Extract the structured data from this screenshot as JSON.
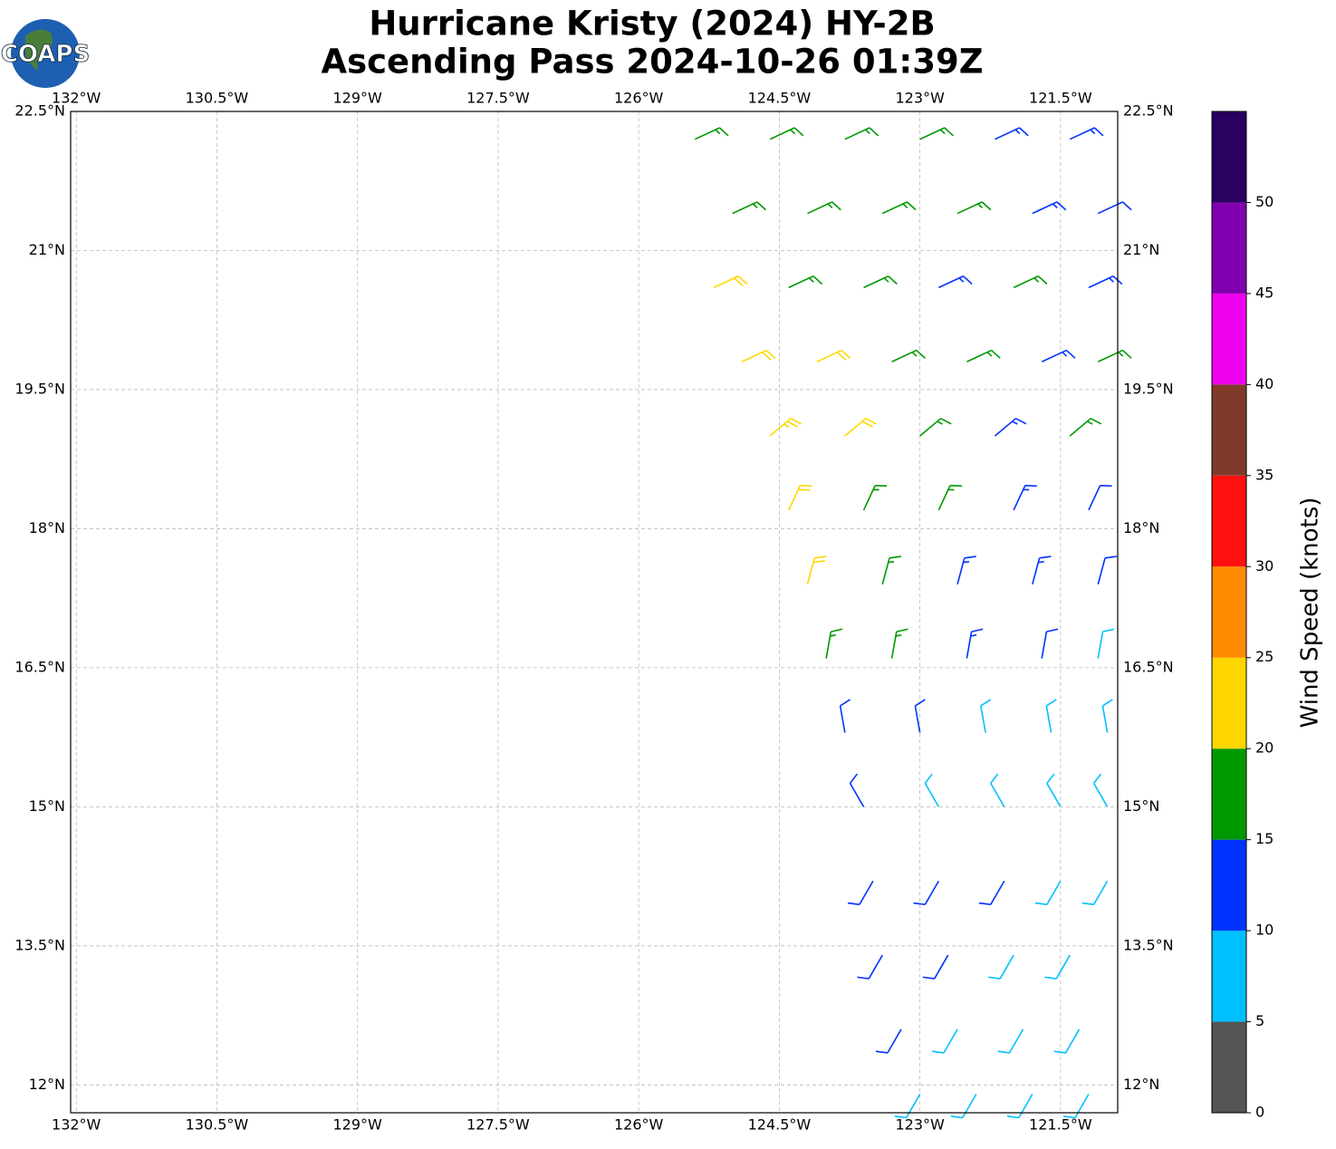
{
  "chart_data": {
    "type": "barbs",
    "title": "Hurricane Kristy (2024) HY-2B",
    "subtitle": "Ascending Pass 2024-10-26 01:39Z",
    "logo": "COAPS",
    "xlim": [
      -132.06,
      -120.89
    ],
    "ylim": [
      11.7,
      22.5
    ],
    "xticks": [
      {
        "value": -132,
        "label": "132°W"
      },
      {
        "value": -130.5,
        "label": "130.5°W"
      },
      {
        "value": -129,
        "label": "129°W"
      },
      {
        "value": -127.5,
        "label": "127.5°W"
      },
      {
        "value": -126,
        "label": "126°W"
      },
      {
        "value": -124.5,
        "label": "124.5°W"
      },
      {
        "value": -123,
        "label": "123°W"
      },
      {
        "value": -121.5,
        "label": "121.5°W"
      }
    ],
    "yticks": [
      {
        "value": 22.5,
        "label": "22.5°N"
      },
      {
        "value": 21,
        "label": "21°N"
      },
      {
        "value": 19.5,
        "label": "19.5°N"
      },
      {
        "value": 18,
        "label": "18°N"
      },
      {
        "value": 16.5,
        "label": "16.5°N"
      },
      {
        "value": 15,
        "label": "15°N"
      },
      {
        "value": 13.5,
        "label": "13.5°N"
      },
      {
        "value": 12,
        "label": "12°N"
      }
    ],
    "grid": true,
    "rows": [
      {
        "lat": 22.2,
        "lon": [
          -125.4,
          -124.6,
          -123.8,
          -123.0,
          -122.2,
          -121.4
        ],
        "speed": [
          17,
          17,
          17,
          16,
          14,
          13
        ],
        "direction": [
          65,
          65,
          65,
          65,
          65,
          65
        ]
      },
      {
        "lat": 21.4,
        "lon": [
          -125.0,
          -124.2,
          -123.4,
          -122.6,
          -121.8,
          -121.1
        ],
        "speed": [
          17,
          17,
          16,
          16,
          13,
          12
        ],
        "direction": [
          65,
          65,
          65,
          65,
          65,
          65
        ]
      },
      {
        "lat": 20.6,
        "lon": [
          -125.2,
          -124.4,
          -123.6,
          -122.8,
          -122.0,
          -121.2
        ],
        "speed": [
          22,
          17,
          17,
          13,
          16,
          13
        ],
        "direction": [
          65,
          65,
          65,
          65,
          65,
          65
        ]
      },
      {
        "lat": 19.8,
        "lon": [
          -124.9,
          -124.1,
          -123.3,
          -122.5,
          -121.7,
          -121.1
        ],
        "speed": [
          22,
          22,
          17,
          17,
          13,
          17
        ],
        "direction": [
          65,
          65,
          65,
          65,
          65,
          65
        ]
      },
      {
        "lat": 19.0,
        "lon": [
          -124.6,
          -123.8,
          -123.0,
          -122.2,
          -121.4
        ],
        "speed": [
          23,
          22,
          17,
          13,
          17
        ],
        "direction": [
          50,
          50,
          50,
          50,
          50
        ]
      },
      {
        "lat": 18.2,
        "lon": [
          -124.4,
          -123.6,
          -122.8,
          -122.0,
          -121.2
        ],
        "speed": [
          22,
          17,
          17,
          13,
          12
        ],
        "direction": [
          25,
          25,
          25,
          25,
          25
        ]
      },
      {
        "lat": 17.4,
        "lon": [
          -124.2,
          -123.4,
          -122.6,
          -121.8,
          -121.1
        ],
        "speed": [
          22,
          17,
          13,
          13,
          12
        ],
        "direction": [
          15,
          15,
          15,
          15,
          15
        ]
      },
      {
        "lat": 16.6,
        "lon": [
          -124.0,
          -123.3,
          -122.5,
          -121.7,
          -121.1
        ],
        "speed": [
          17,
          17,
          13,
          12,
          8
        ],
        "direction": [
          10,
          10,
          10,
          10,
          10
        ]
      },
      {
        "lat": 15.8,
        "lon": [
          -123.8,
          -123.0,
          -122.3,
          -121.6,
          -121.0
        ],
        "speed": [
          12,
          12,
          8,
          8,
          8
        ],
        "direction": [
          350,
          350,
          350,
          350,
          350
        ]
      },
      {
        "lat": 15.0,
        "lon": [
          -123.6,
          -122.8,
          -122.1,
          -121.5,
          -121.0
        ],
        "speed": [
          12,
          8,
          8,
          8,
          8
        ],
        "direction": [
          330,
          330,
          330,
          330,
          330
        ]
      },
      {
        "lat": 14.2,
        "lon": [
          -123.5,
          -122.8,
          -122.1,
          -121.5,
          -121.0
        ],
        "speed": [
          12,
          12,
          12,
          8,
          8
        ],
        "direction": [
          210,
          210,
          210,
          210,
          210
        ]
      },
      {
        "lat": 13.4,
        "lon": [
          -123.4,
          -122.7,
          -122.0,
          -121.4
        ],
        "speed": [
          12,
          12,
          8,
          8
        ],
        "direction": [
          210,
          210,
          210,
          210
        ]
      },
      {
        "lat": 12.6,
        "lon": [
          -123.2,
          -122.6,
          -121.9,
          -121.3
        ],
        "speed": [
          12,
          8,
          8,
          8
        ],
        "direction": [
          210,
          210,
          210,
          210
        ]
      },
      {
        "lat": 11.9,
        "lon": [
          -123.0,
          -122.4,
          -121.8,
          -121.2
        ],
        "speed": [
          8,
          8,
          8,
          8
        ],
        "direction": [
          210,
          210,
          210,
          210
        ]
      }
    ],
    "colorbar": {
      "label": "Wind Speed (knots)",
      "lim": [
        0,
        55
      ],
      "ticks": [
        0,
        5,
        10,
        15,
        20,
        25,
        30,
        35,
        40,
        45,
        50
      ],
      "colors": [
        "#555555",
        "#00bfff",
        "#0033ff",
        "#009900",
        "#ffd700",
        "#ff8c00",
        "#ff1010",
        "#7f3a2a",
        "#ee00ee",
        "#8000b0",
        "#2a0060"
      ]
    }
  }
}
